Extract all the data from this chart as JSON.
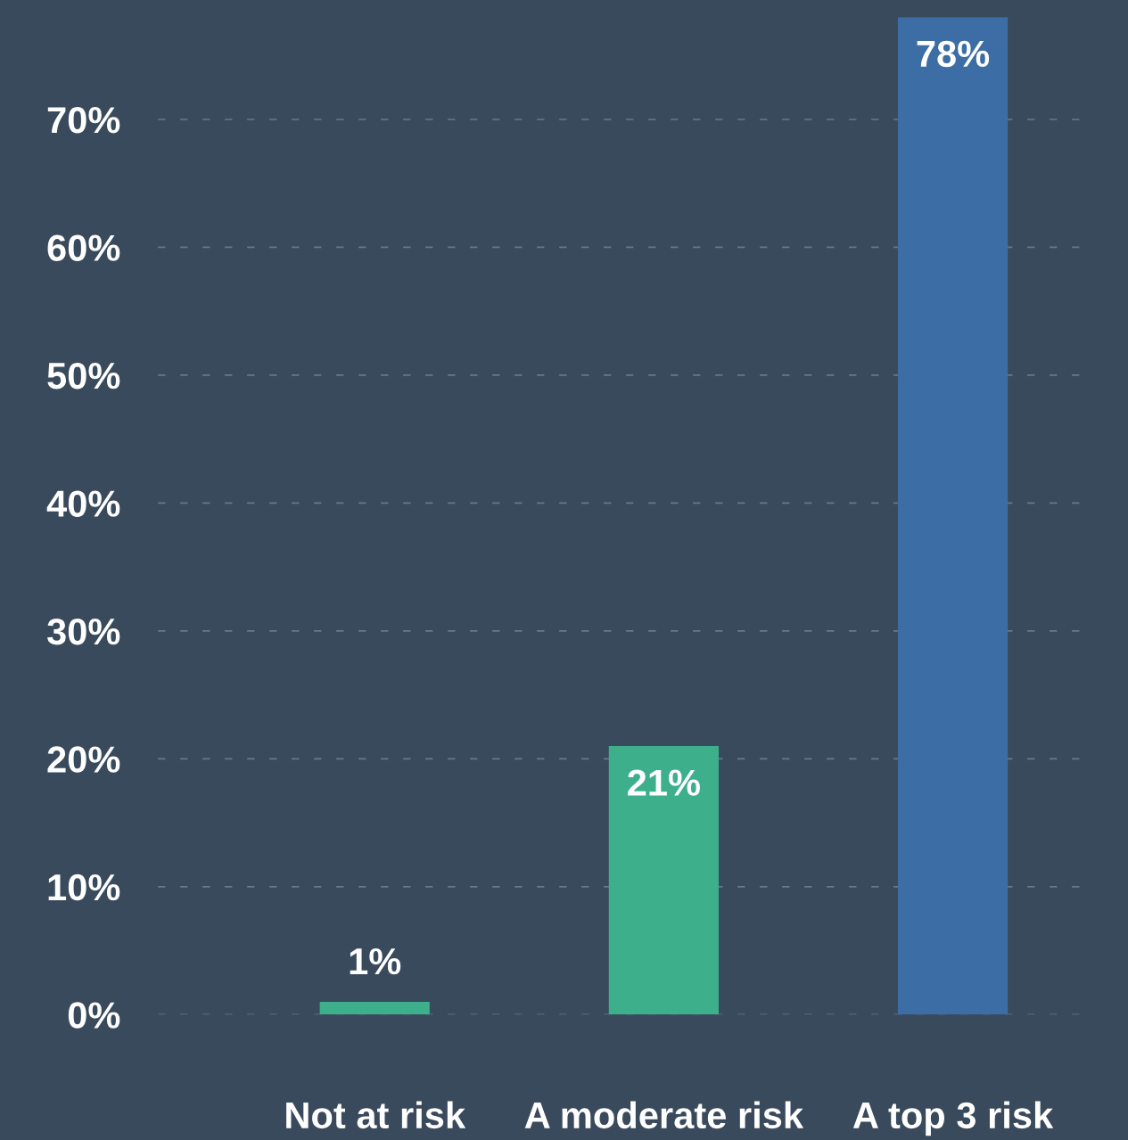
{
  "chart_data": {
    "type": "bar",
    "categories": [
      "Not at risk",
      "A moderate risk",
      "A top 3 risk"
    ],
    "values": [
      1,
      21,
      78
    ],
    "colors": [
      "#3db08b",
      "#3db08b",
      "#3d6da5"
    ],
    "ylim": [
      0,
      78
    ],
    "yticks": [
      {
        "value": 0,
        "label": "0%"
      },
      {
        "value": 10,
        "label": "10%"
      },
      {
        "value": 20,
        "label": "20%"
      },
      {
        "value": 30,
        "label": "30%"
      },
      {
        "value": 40,
        "label": "40%"
      },
      {
        "value": 50,
        "label": "50%"
      },
      {
        "value": 60,
        "label": "60%"
      },
      {
        "value": 70,
        "label": "70%"
      }
    ],
    "grid": "y",
    "line_style": "dashed",
    "value_labels": [
      "1%",
      "21%",
      "78%"
    ],
    "legend": false
  }
}
